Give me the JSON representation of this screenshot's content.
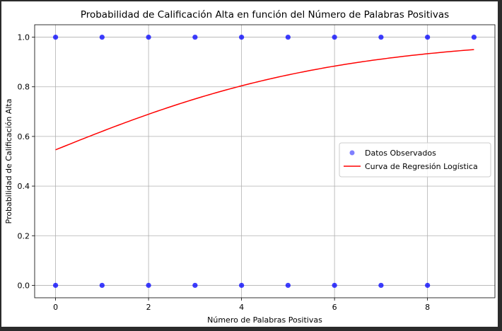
{
  "chart_data": {
    "type": "scatter",
    "title": "Probabilidad de Calificación Alta en función del Número de Palabras Positivas",
    "xlabel": "Número de Palabras Positivas",
    "ylabel": "Probabilidad de Calificación Alta",
    "xlim": [
      -0.45,
      9.45
    ],
    "ylim": [
      -0.05,
      1.05
    ],
    "xticks": [
      0,
      2,
      4,
      6,
      8
    ],
    "yticks": [
      0.0,
      0.2,
      0.4,
      0.6,
      0.8,
      1.0
    ],
    "xtick_labels": [
      "0",
      "2",
      "4",
      "6",
      "8"
    ],
    "ytick_labels": [
      "0.0",
      "0.2",
      "0.4",
      "0.6",
      "0.8",
      "1.0"
    ],
    "grid": true,
    "legend_position": "center-right",
    "series": [
      {
        "name": "Datos Observados",
        "kind": "scatter",
        "color": "#0000ff",
        "points": [
          {
            "x": 0,
            "y": 1
          },
          {
            "x": 1,
            "y": 1
          },
          {
            "x": 2,
            "y": 1
          },
          {
            "x": 3,
            "y": 1
          },
          {
            "x": 4,
            "y": 1
          },
          {
            "x": 5,
            "y": 1
          },
          {
            "x": 6,
            "y": 1
          },
          {
            "x": 7,
            "y": 1
          },
          {
            "x": 8,
            "y": 1
          },
          {
            "x": 9,
            "y": 1
          },
          {
            "x": 0,
            "y": 0
          },
          {
            "x": 1,
            "y": 0
          },
          {
            "x": 2,
            "y": 0
          },
          {
            "x": 3,
            "y": 0
          },
          {
            "x": 4,
            "y": 0
          },
          {
            "x": 5,
            "y": 0
          },
          {
            "x": 6,
            "y": 0
          },
          {
            "x": 7,
            "y": 0
          },
          {
            "x": 8,
            "y": 0
          }
        ]
      },
      {
        "name": "Curva de Regresión Logística",
        "kind": "line",
        "color": "#ff0000",
        "x": [
          0,
          1,
          2,
          3,
          4,
          5,
          6,
          7,
          8,
          9
        ],
        "y": [
          0.546,
          0.618,
          0.687,
          0.749,
          0.802,
          0.847,
          0.883,
          0.912,
          0.933,
          0.95
        ]
      }
    ]
  }
}
